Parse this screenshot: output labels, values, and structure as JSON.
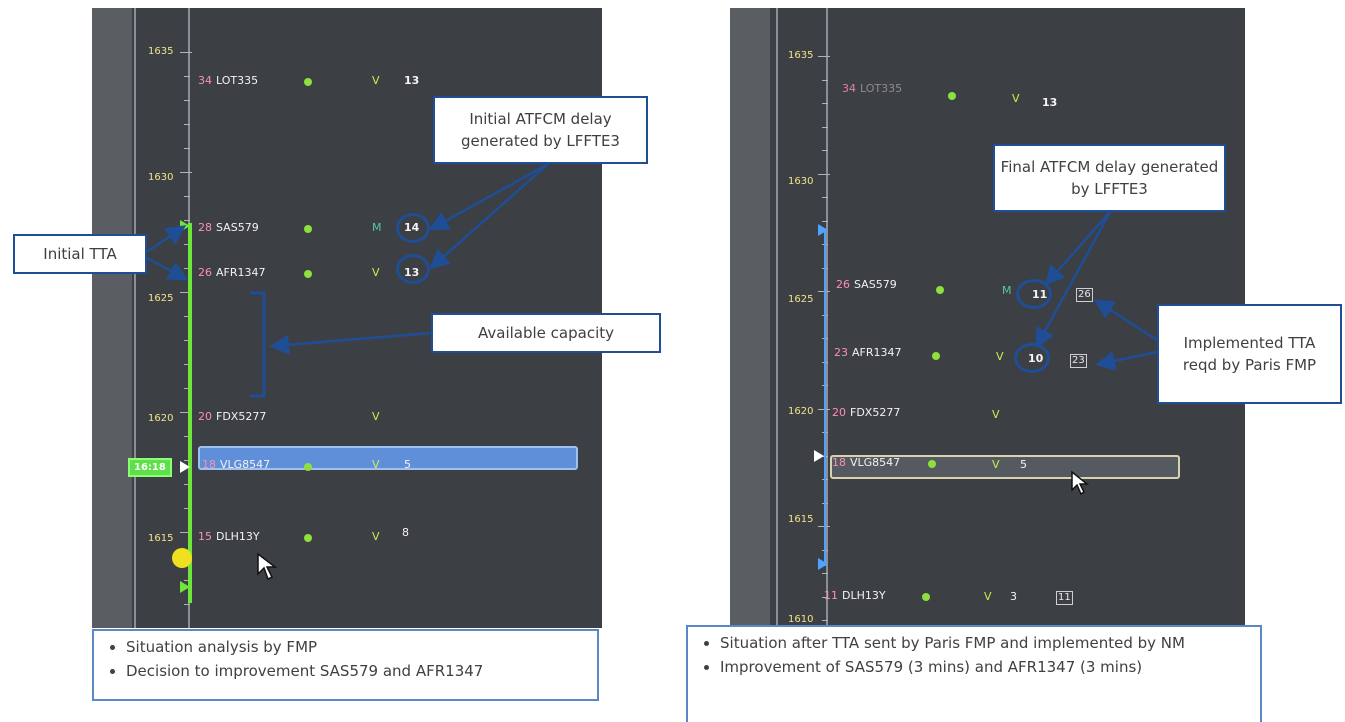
{
  "left": {
    "ticks": [
      "1635",
      "1630",
      "1625",
      "1620",
      "1615"
    ],
    "flights": [
      {
        "num": "34",
        "callsign": "LOT335",
        "flag": "V",
        "delay": "13"
      },
      {
        "num": "28",
        "callsign": "SAS579",
        "flag": "M",
        "delay": "14"
      },
      {
        "num": "26",
        "callsign": "AFR1347",
        "flag": "V",
        "delay": "13"
      },
      {
        "num": "20",
        "callsign": "FDX5277",
        "flag": "V",
        "delay": ""
      },
      {
        "num": "18",
        "callsign": "VLG8547",
        "flag": "V",
        "delay": "5"
      },
      {
        "num": "15",
        "callsign": "DLH13Y",
        "flag": "V",
        "delay": "8"
      }
    ],
    "time_box": "16:18",
    "callouts": {
      "initial_atfcm": "Initial ATFCM delay generated by LFFTE3",
      "initial_tta": "Initial TTA",
      "available_capacity": "Available capacity"
    },
    "notes": [
      "Situation analysis by FMP",
      "Decision to improvement SAS579 and AFR1347"
    ]
  },
  "right": {
    "ticks": [
      "1635",
      "1630",
      "1625",
      "1620",
      "1615",
      "1610"
    ],
    "flights": [
      {
        "num": "34",
        "callsign": "LOT335",
        "flag": "V",
        "delay": "13",
        "tta": ""
      },
      {
        "num": "26",
        "callsign": "SAS579",
        "flag": "M",
        "delay": "11",
        "tta": "26"
      },
      {
        "num": "23",
        "callsign": "AFR1347",
        "flag": "V",
        "delay": "10",
        "tta": "23"
      },
      {
        "num": "20",
        "callsign": "FDX5277",
        "flag": "V",
        "delay": "",
        "tta": ""
      },
      {
        "num": "18",
        "callsign": "VLG8547",
        "flag": "V",
        "delay": "5",
        "tta": ""
      },
      {
        "num": "11",
        "callsign": "DLH13Y",
        "flag": "V",
        "delay": "3",
        "tta": "11"
      }
    ],
    "callouts": {
      "final_atfcm": "Final ATFCM delay generated by LFFTE3",
      "implemented_tta": "Implemented TTA reqd by Paris FMP"
    },
    "notes": [
      "Situation after TTA sent by Paris FMP and implemented by NM",
      "Improvement of SAS579 (3 mins) and AFR1347 (3 mins)"
    ]
  },
  "colors": {
    "callout_border": "#1f4e96",
    "green_bar": "#6ee63a",
    "blue_bar": "#4fa3ff",
    "screen_bg": "#3c3f44"
  }
}
